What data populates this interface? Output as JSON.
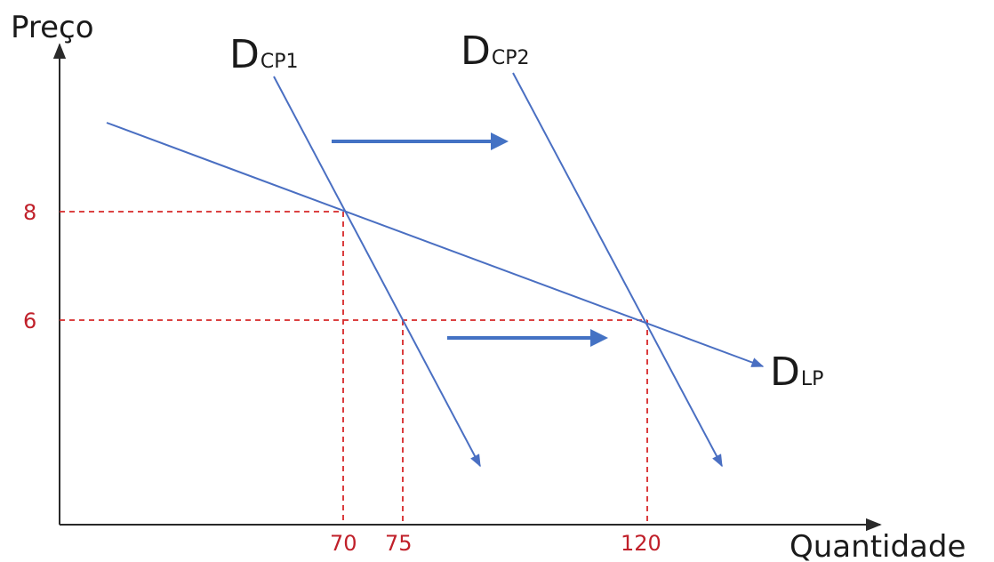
{
  "chart_data": {
    "type": "line",
    "ylabel": "Preço",
    "xlabel": "Quantidade",
    "x_ticks": [
      70,
      75,
      120
    ],
    "y_ticks": [
      8,
      6
    ],
    "series": [
      {
        "label_main": "D",
        "label_sub": "CP1",
        "role": "short-run demand 1",
        "points": [
          {
            "x": 70,
            "y": 8
          },
          {
            "x": 75,
            "y": 6
          }
        ]
      },
      {
        "label_main": "D",
        "label_sub": "CP2",
        "role": "short-run demand 2",
        "points": [
          {
            "x": 120,
            "y": 6
          }
        ]
      },
      {
        "label_main": "D",
        "label_sub": "LP",
        "role": "long-run demand",
        "points": [
          {
            "x": 70,
            "y": 8
          },
          {
            "x": 120,
            "y": 6
          }
        ]
      }
    ],
    "reference_lines": [
      {
        "from": {
          "x": 70,
          "y": 8
        },
        "to": "both-axes"
      },
      {
        "from": {
          "x": 75,
          "y": 6
        },
        "to": "x-axis"
      },
      {
        "from": {
          "x": 120,
          "y": 6
        },
        "to": "both-axes"
      }
    ],
    "shift_arrows": 2,
    "grid": false,
    "colors": {
      "curve": "#4a6fc2",
      "shift_arrow": "#4472c4",
      "reference": "#d62728",
      "tick_text": "#c0202a",
      "axis": "#2a2a2a"
    }
  }
}
